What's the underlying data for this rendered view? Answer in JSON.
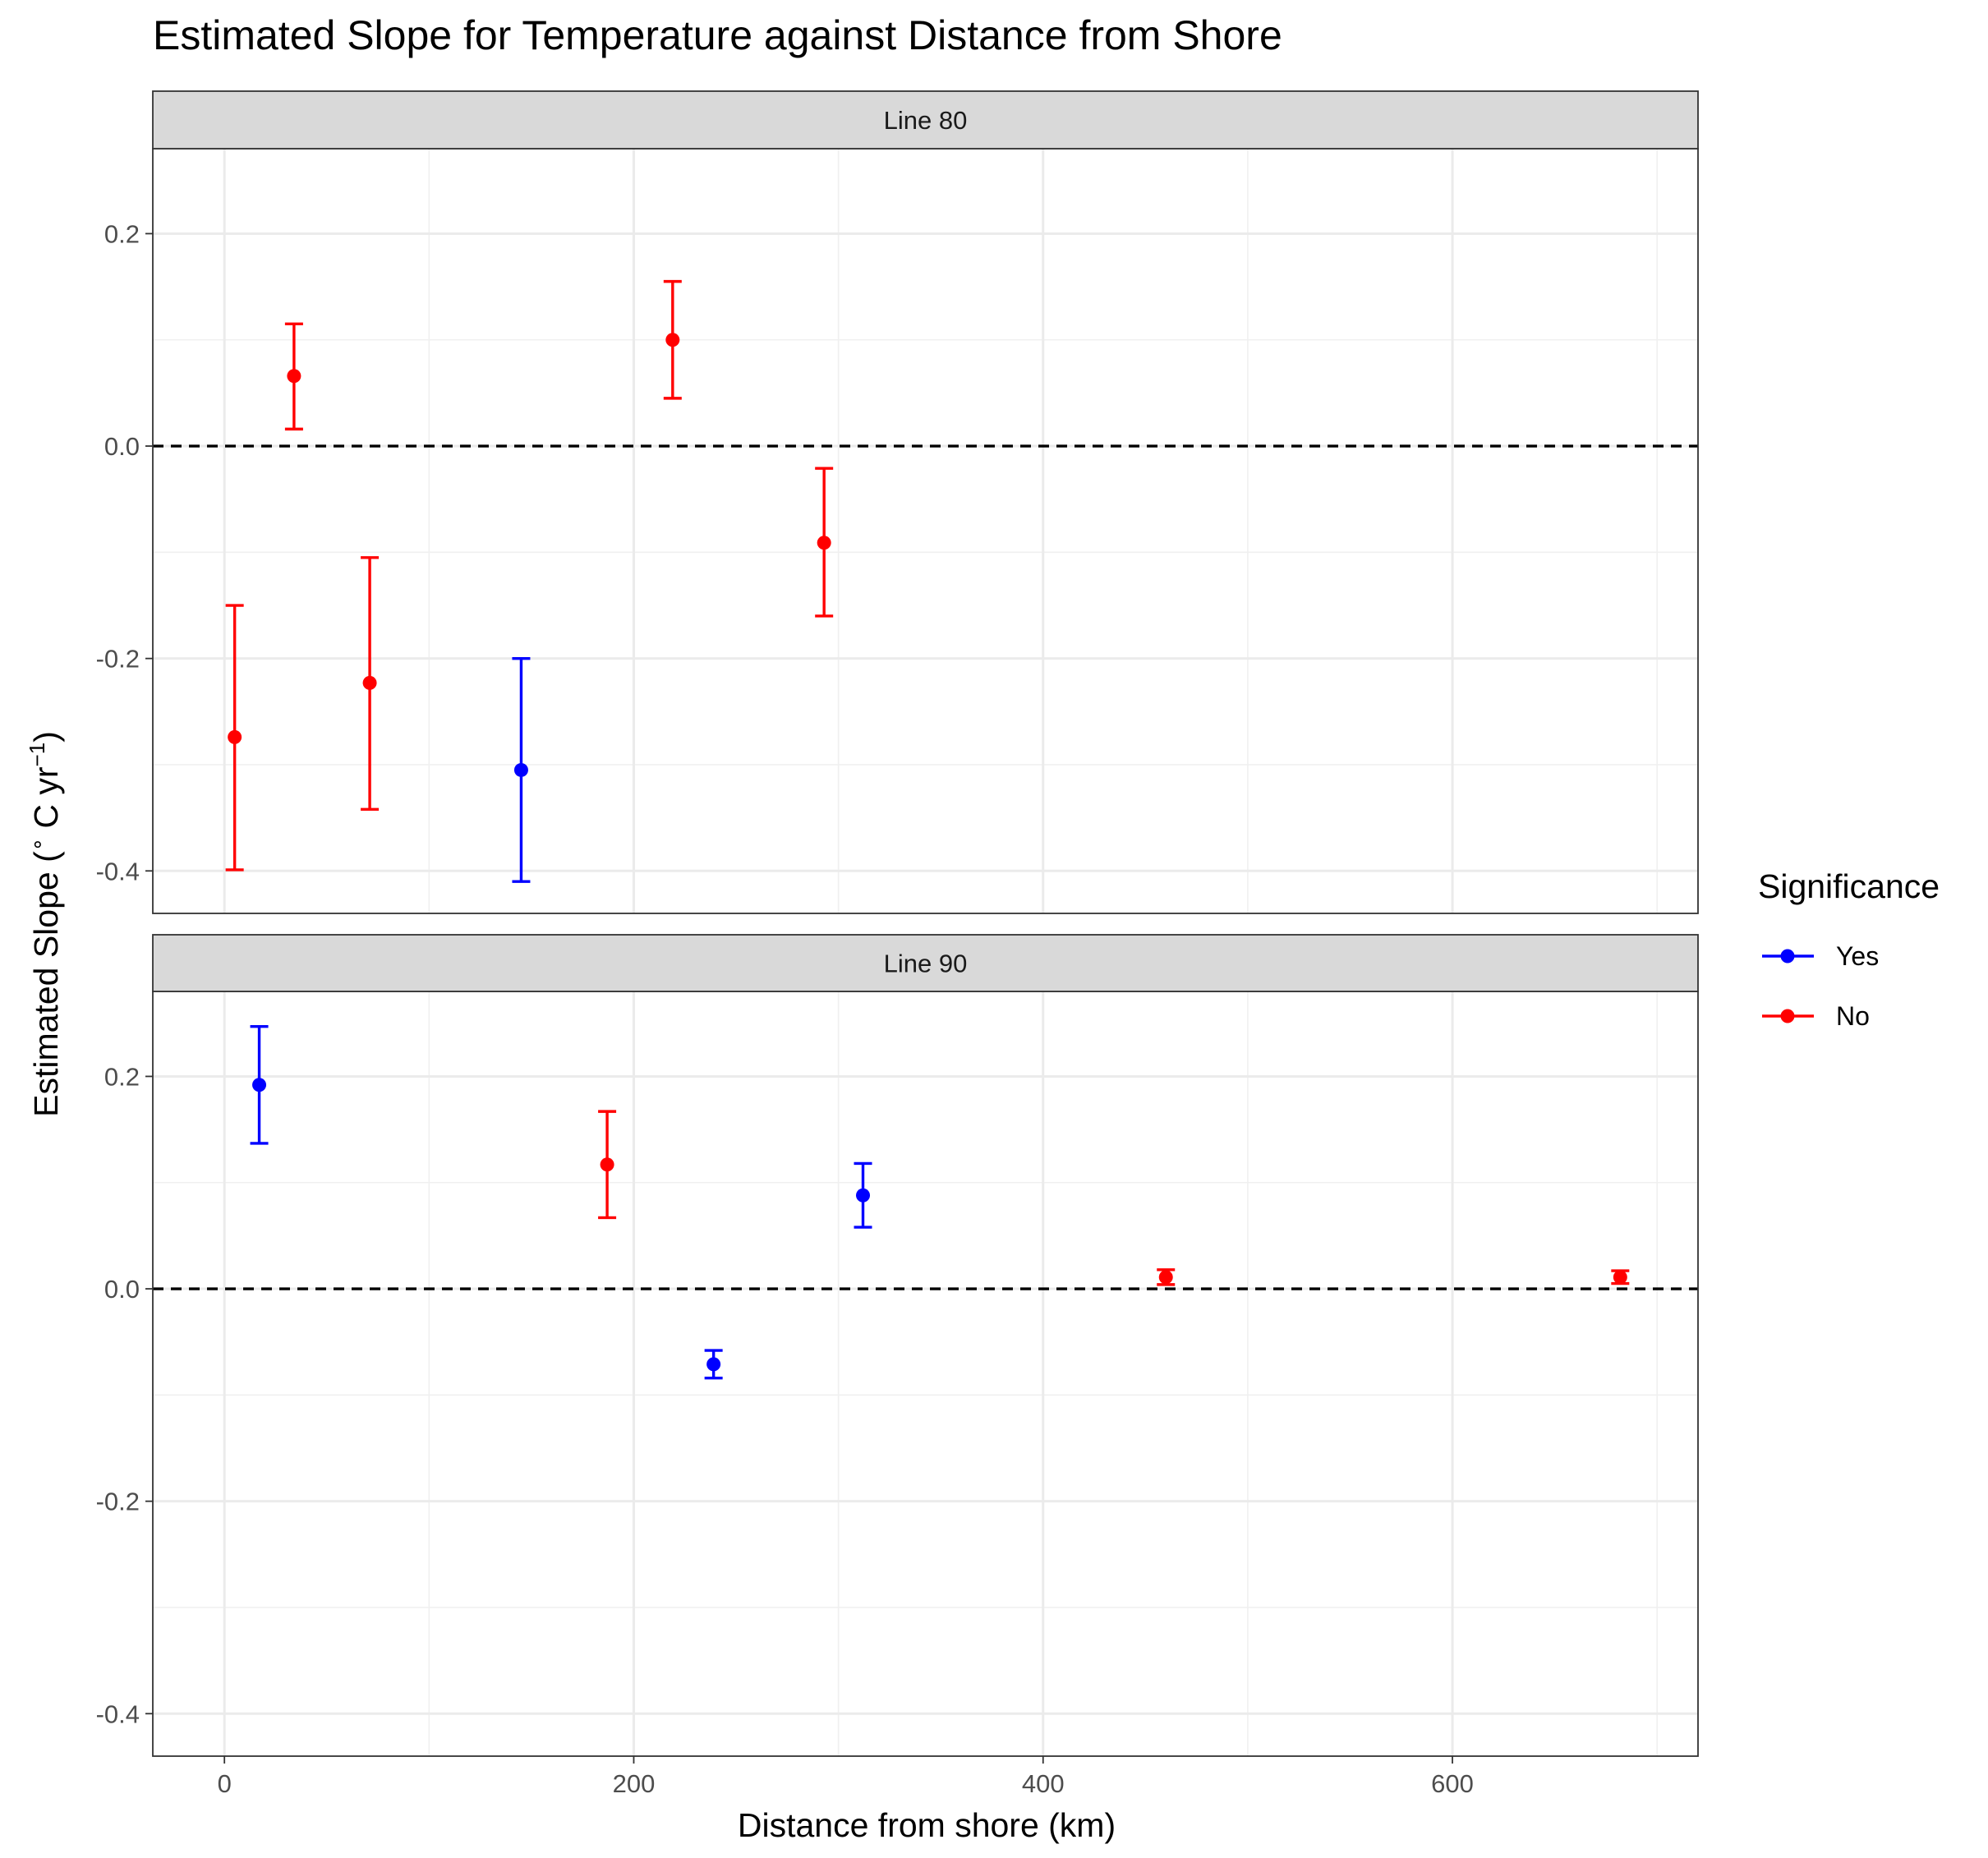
{
  "chart_data": {
    "type": "scatter",
    "subtype": "point-with-errorbars, faceted",
    "title": "Estimated Slope for Temperature against Distance from Shore",
    "xlabel": "Distance from shore (km)",
    "ylabel_parts": [
      "Estimated Slope (",
      "∘",
      " C yr",
      "−1",
      ")"
    ],
    "xlim": [
      -35,
      720
    ],
    "ylim": [
      -0.44,
      0.28
    ],
    "x_ticks": [
      0,
      200,
      400,
      600
    ],
    "x_tick_labels": [
      "0",
      "200",
      "400",
      "600"
    ],
    "y_ticks": [
      -0.4,
      -0.2,
      0.0,
      0.2
    ],
    "y_tick_labels": [
      "-0.4",
      "-0.2",
      "0.0",
      "0.2"
    ],
    "x_minor_grid": [
      100,
      300,
      500,
      700
    ],
    "y_minor_grid": [
      -0.3,
      -0.1,
      0.1
    ],
    "reference_line": {
      "y": 0,
      "style": "dashed"
    },
    "grid": true,
    "legend": {
      "title": "Significance",
      "position": "right",
      "entries": [
        {
          "label": "Yes",
          "color": "#0000ff"
        },
        {
          "label": "No",
          "color": "#ff0000"
        }
      ]
    },
    "facets": [
      {
        "label": "Line 80",
        "points": [
          {
            "x": 5,
            "y": -0.274,
            "ymin": -0.399,
            "ymax": -0.15,
            "significance": "No"
          },
          {
            "x": 34,
            "y": 0.066,
            "ymin": 0.016,
            "ymax": 0.115,
            "significance": "No"
          },
          {
            "x": 71,
            "y": -0.223,
            "ymin": -0.342,
            "ymax": -0.105,
            "significance": "No"
          },
          {
            "x": 145,
            "y": -0.305,
            "ymin": -0.41,
            "ymax": -0.2,
            "significance": "Yes"
          },
          {
            "x": 219,
            "y": 0.1,
            "ymin": 0.045,
            "ymax": 0.155,
            "significance": "No"
          },
          {
            "x": 293,
            "y": -0.091,
            "ymin": -0.16,
            "ymax": -0.021,
            "significance": "No"
          }
        ]
      },
      {
        "label": "Line 90",
        "points": [
          {
            "x": 17,
            "y": 0.192,
            "ymin": 0.137,
            "ymax": 0.247,
            "significance": "Yes"
          },
          {
            "x": 187,
            "y": 0.117,
            "ymin": 0.067,
            "ymax": 0.167,
            "significance": "No"
          },
          {
            "x": 239,
            "y": -0.071,
            "ymin": -0.084,
            "ymax": -0.058,
            "significance": "Yes"
          },
          {
            "x": 312,
            "y": 0.088,
            "ymin": 0.058,
            "ymax": 0.118,
            "significance": "Yes"
          },
          {
            "x": 460,
            "y": 0.011,
            "ymin": 0.004,
            "ymax": 0.018,
            "significance": "No"
          },
          {
            "x": 682,
            "y": 0.011,
            "ymin": 0.005,
            "ymax": 0.017,
            "significance": "No"
          }
        ]
      }
    ]
  }
}
